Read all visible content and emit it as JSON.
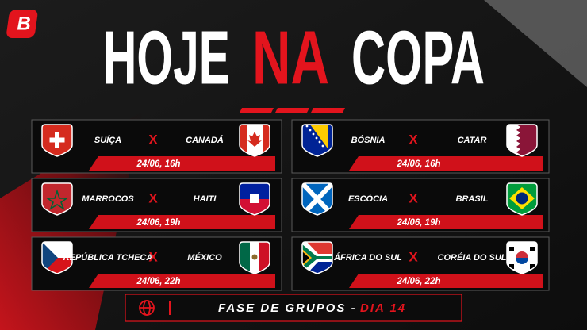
{
  "logo": "B",
  "header": {
    "title": [
      "HOJE",
      "NA",
      "COPA"
    ]
  },
  "matches": [
    {
      "home": "SUÍÇA",
      "vs": "X",
      "away": "CANADÁ",
      "when": "24/06, 16h"
    },
    {
      "home": "BÓSNIA",
      "vs": "X",
      "away": "CATAR",
      "when": "24/06, 16h"
    },
    {
      "home": "MARROCOS",
      "vs": "X",
      "away": "HAITI",
      "when": "24/06, 19h"
    },
    {
      "home": "ESCÓCIA",
      "vs": "X",
      "away": "BRASIL",
      "when": "24/06, 19h"
    },
    {
      "home": "REPÚBLICA TCHECA",
      "vs": "X",
      "away": "MÉXICO",
      "when": "24/06, 22h"
    },
    {
      "home": "ÁFRICA DO SUL",
      "vs": "X",
      "away": "CORÉIA DO SUL",
      "when": "24/06, 22h"
    }
  ],
  "footer": {
    "stage": "FASE DE GRUPOS -",
    "day": "DIA 14"
  }
}
